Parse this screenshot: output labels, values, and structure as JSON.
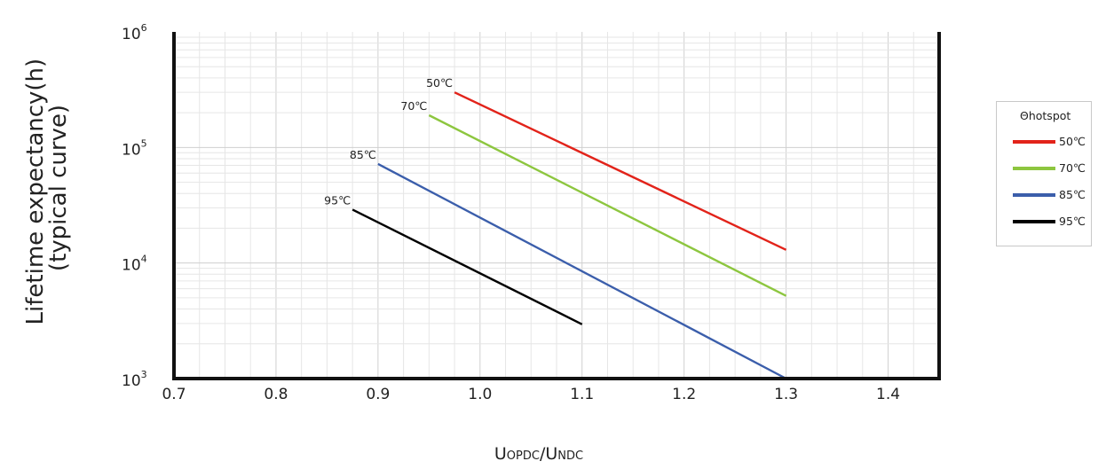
{
  "chart_data": {
    "type": "line",
    "title": "",
    "ylabel_line1": "Lifetime expectancy(h)",
    "ylabel_line2": "(typical curve)",
    "xlabel": {
      "u1": "U",
      "s1": "OPDC",
      "sep": "/",
      "u2": "U",
      "s2": "NDC"
    },
    "xlim": [
      0.7,
      1.45
    ],
    "ylim": [
      1000,
      1000000
    ],
    "yscale": "log",
    "grid": true,
    "xticks": [
      0.7,
      0.8,
      0.9,
      1.0,
      1.1,
      1.2,
      1.3,
      1.4
    ],
    "xtick_labels": [
      "0.7",
      "0.8",
      "0.9",
      "1.0",
      "1.1",
      "1.2",
      "1.3",
      "1.4"
    ],
    "yticks": [
      {
        "value": 1000,
        "base": "10",
        "exp": "3"
      },
      {
        "value": 10000,
        "base": "10",
        "exp": "4"
      },
      {
        "value": 100000,
        "base": "10",
        "exp": "5"
      },
      {
        "value": 1000000,
        "base": "10",
        "exp": "6"
      }
    ],
    "legend_title": "Θhotspot",
    "legend_position": "right",
    "series": [
      {
        "name": "50℃",
        "color": "#e2231a",
        "x": [
          0.975,
          1.3
        ],
        "y": [
          300000,
          13000
        ]
      },
      {
        "name": "70℃",
        "color": "#8dc63f",
        "x": [
          0.95,
          1.3
        ],
        "y": [
          190000,
          5200
        ]
      },
      {
        "name": "85℃",
        "color": "#3b5eab",
        "x": [
          0.9,
          1.3
        ],
        "y": [
          72000,
          1000
        ]
      },
      {
        "name": "95℃",
        "color": "#000000",
        "x": [
          0.875,
          1.1
        ],
        "y": [
          29000,
          2950
        ]
      }
    ]
  }
}
